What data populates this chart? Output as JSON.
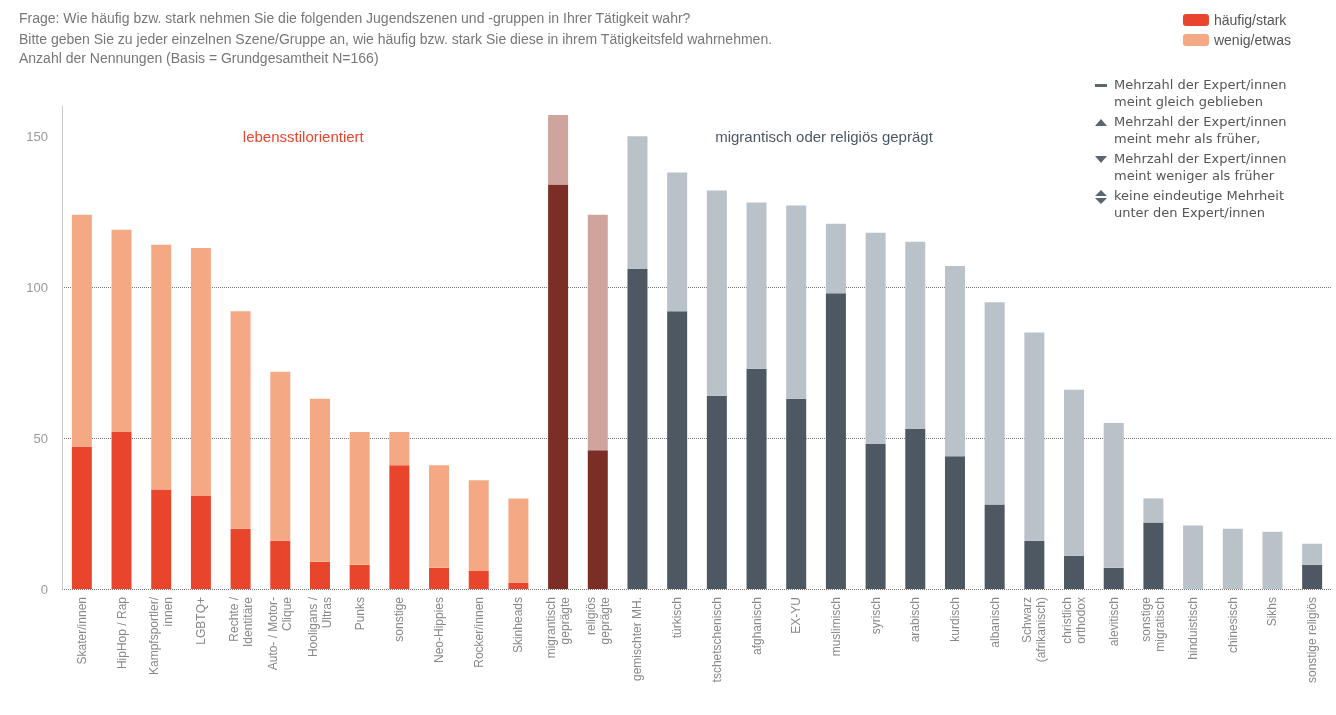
{
  "chart_data": {
    "type": "bar",
    "title": "Frage: Wie häufig bzw. stark nehmen Sie die folgenden Jugendszenen und -gruppen in Ihrer Tätigkeit wahr?",
    "subtitle": "Bitte geben Sie zu jeder einzelnen Szene/Gruppe an, wie häufig bzw. stark Sie diese in ihrem Tätigkeitsfeld wahrnehmen.\nAnzahl der Nennungen (Basis = Grundgesamtheit N=166)",
    "categories": [
      "Skater/innen",
      "HipHop / Rap",
      "Kampfsportler/\ninnen",
      "LGBTQ+",
      "Rechte /\nIdentitäre",
      "Auto- / Motor-\nClique",
      "Hooligans /\nUltras",
      "Punks",
      "sonstige",
      "Neo-Hippies",
      "Rocker/innen",
      "Skinheads",
      "migrantisch\ngeprägte",
      "religiös\ngeprägte",
      "gemischter MH.",
      "türkisch",
      "tschetschenisch",
      "afghanisch",
      "EX-YU",
      "muslimisch",
      "syrisch",
      "arabisch",
      "kurdisch",
      "albanisch",
      "Schwarz\n(afrikanisch)",
      "christlich\northodox",
      "alevitisch",
      "sonstige\nmigratisch",
      "hinduistisch",
      "chinesisch",
      "Sikhs",
      "sonstige religiös"
    ],
    "stacked": true,
    "series": [
      {
        "name": "häufig/stark",
        "color": "#e8452c",
        "values": [
          47,
          52,
          33,
          31,
          20,
          16,
          9,
          8,
          41,
          7,
          6,
          2,
          134,
          46,
          106,
          92,
          64,
          73,
          63,
          98,
          48,
          53,
          44,
          28,
          16,
          11,
          7,
          22,
          0,
          0,
          0,
          8
        ],
        "colors": [
          "#e8452c",
          "#e8452c",
          "#e8452c",
          "#e8452c",
          "#e8452c",
          "#e8452c",
          "#e8452c",
          "#e8452c",
          "#e8452c",
          "#e8452c",
          "#e8452c",
          "#e8452c",
          "#7a2e26",
          "#7a2e26",
          "#4d5862",
          "#4d5862",
          "#4d5862",
          "#4d5862",
          "#4d5862",
          "#4d5862",
          "#4d5862",
          "#4d5862",
          "#4d5862",
          "#4d5862",
          "#4d5862",
          "#4d5862",
          "#4d5862",
          "#4d5862",
          "#4d5862",
          "#4d5862",
          "#4d5862",
          "#4d5862"
        ]
      },
      {
        "name": "wenig/etwas",
        "color": "#f5a884",
        "values": [
          77,
          67,
          81,
          82,
          72,
          56,
          54,
          44,
          11,
          34,
          30,
          28,
          23,
          78,
          44,
          46,
          68,
          55,
          64,
          23,
          70,
          62,
          63,
          67,
          69,
          55,
          48,
          8,
          21,
          20,
          19,
          7
        ],
        "colors": [
          "#f5a884",
          "#f5a884",
          "#f5a884",
          "#f5a884",
          "#f5a884",
          "#f5a884",
          "#f5a884",
          "#f5a884",
          "#f5a884",
          "#f5a884",
          "#f5a884",
          "#f5a884",
          "#cfa49c",
          "#cfa49c",
          "#b9c1c9",
          "#b9c1c9",
          "#b9c1c9",
          "#b9c1c9",
          "#b9c1c9",
          "#b9c1c9",
          "#b9c1c9",
          "#b9c1c9",
          "#b9c1c9",
          "#b9c1c9",
          "#b9c1c9",
          "#b9c1c9",
          "#b9c1c9",
          "#b9c1c9",
          "#b9c1c9",
          "#b9c1c9",
          "#b9c1c9",
          "#b9c1c9"
        ]
      }
    ],
    "ylim": [
      0,
      160
    ],
    "yticks": [
      0,
      50,
      100,
      150
    ],
    "grid": "y",
    "legend": "top right",
    "annotations": [
      "lebensstilorientiert",
      "migrantisch oder religiös geprägt",
      "Mehrzahl der Expert/innen\nmeint gleich geblieben",
      "Mehrzahl der Expert/innen\nmeint mehr als früher,",
      "Mehrzahl der Expert/innen\nmeint weniger als früher",
      "keine eindeutige Mehrheit\nunter den Expert/innen"
    ]
  }
}
